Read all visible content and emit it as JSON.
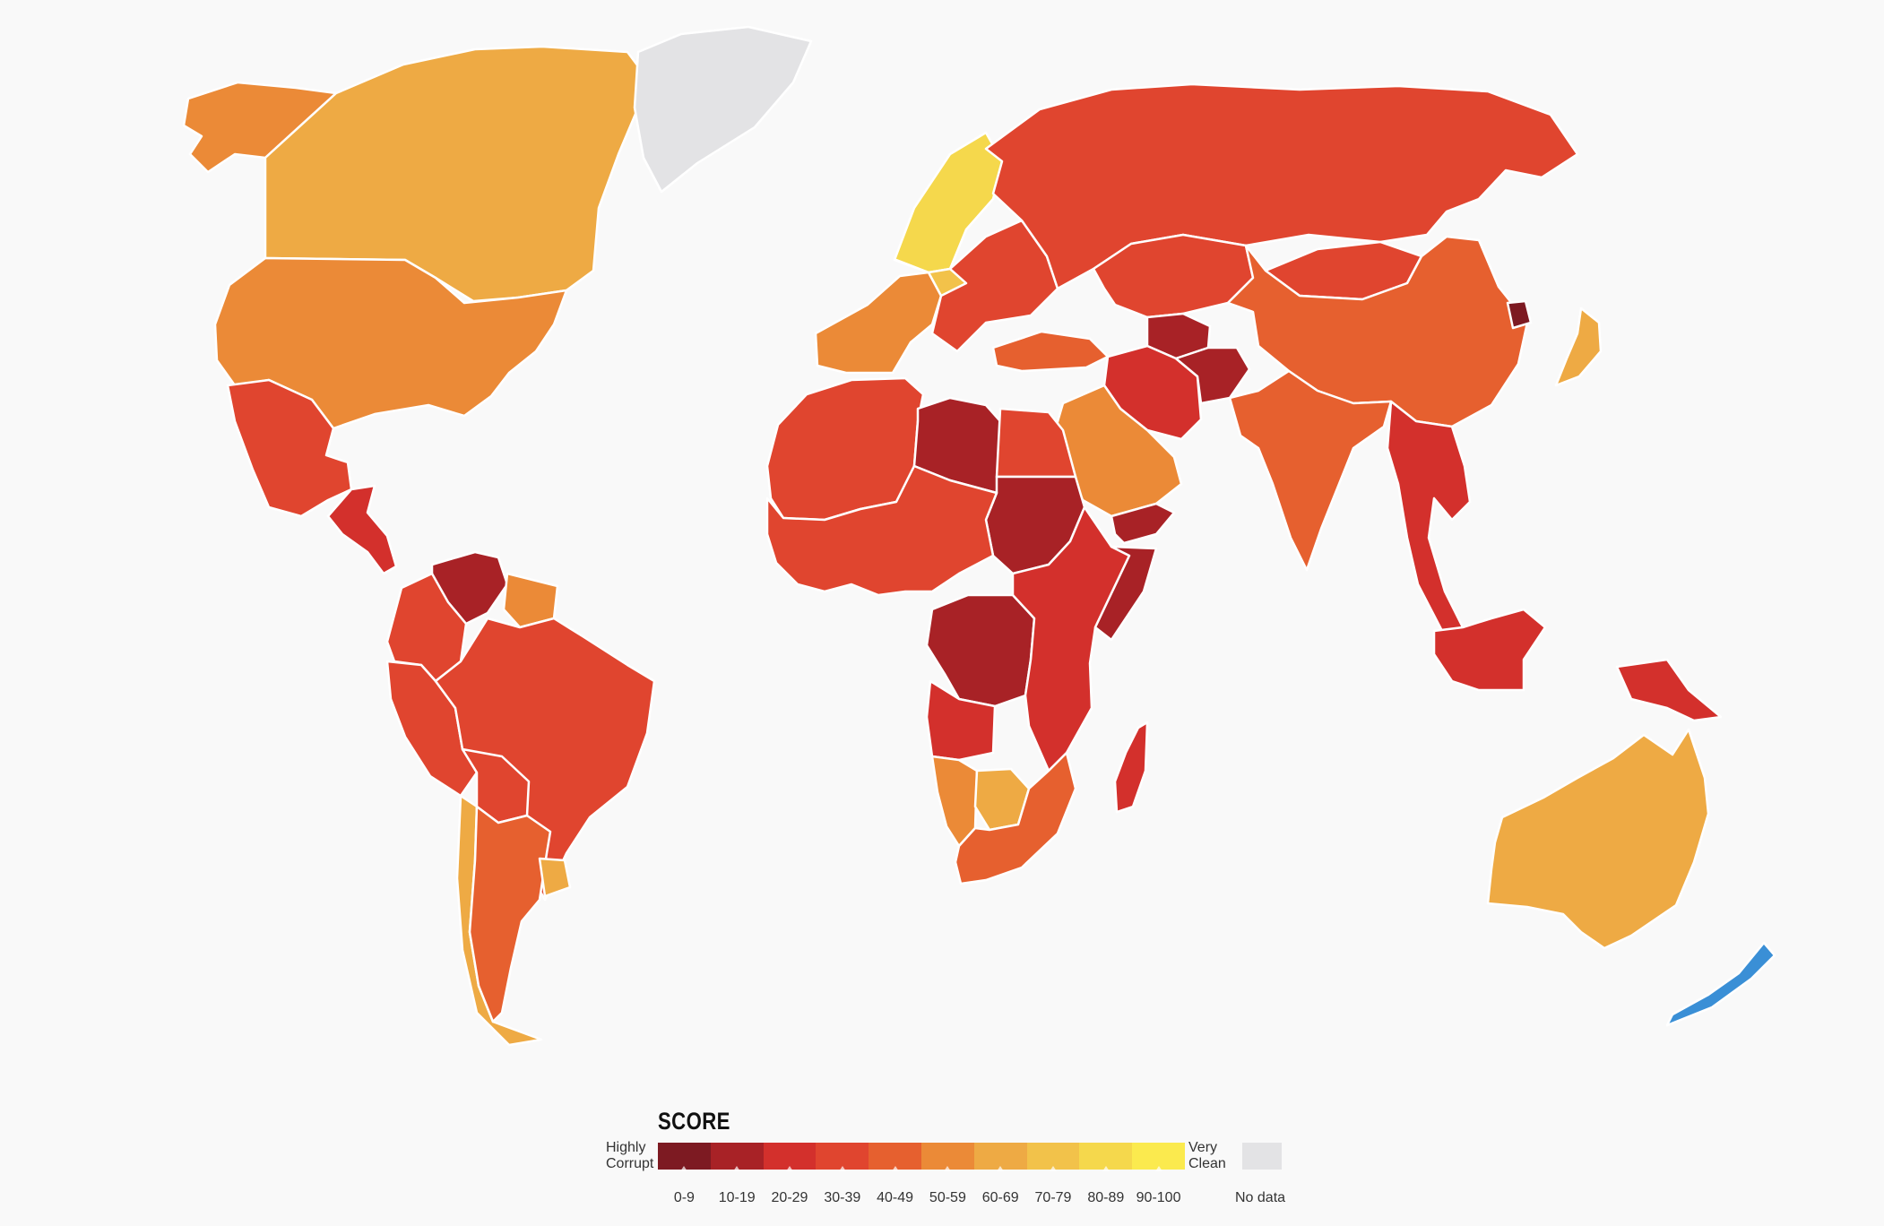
{
  "legend": {
    "title": "SCORE",
    "left_label_line1": "Highly",
    "left_label_line2": "Corrupt",
    "right_label_line1": "Very",
    "right_label_line2": "Clean",
    "no_data_label": "No data",
    "bins": [
      {
        "label": "0-9",
        "color": "#7d1a22"
      },
      {
        "label": "10-19",
        "color": "#a82226"
      },
      {
        "label": "20-29",
        "color": "#d3302c"
      },
      {
        "label": "30-39",
        "color": "#e0452f"
      },
      {
        "label": "40-49",
        "color": "#e6602f"
      },
      {
        "label": "50-59",
        "color": "#eb8a37"
      },
      {
        "label": "60-69",
        "color": "#eeaa44"
      },
      {
        "label": "70-79",
        "color": "#f2c24a"
      },
      {
        "label": "80-89",
        "color": "#f5d84c"
      },
      {
        "label": "90-100",
        "color": "#fbea4e"
      }
    ],
    "no_data_color": "#e3e3e5"
  },
  "map": {
    "ocean_color": "#f9f9f9",
    "border_color": "#ffffff",
    "regions": [
      {
        "name": "alaska",
        "color": "#eb8a37"
      },
      {
        "name": "canada",
        "color": "#eeaa44"
      },
      {
        "name": "greenland",
        "color": "#e3e3e5"
      },
      {
        "name": "usa",
        "color": "#eb8a37"
      },
      {
        "name": "mexico",
        "color": "#e0452f"
      },
      {
        "name": "central-america",
        "color": "#d3302c"
      },
      {
        "name": "venezuela",
        "color": "#a82226"
      },
      {
        "name": "colombia",
        "color": "#e0452f"
      },
      {
        "name": "brazil",
        "color": "#e0452f"
      },
      {
        "name": "guianas",
        "color": "#eb8a37"
      },
      {
        "name": "peru",
        "color": "#e0452f"
      },
      {
        "name": "bolivia",
        "color": "#e0452f"
      },
      {
        "name": "argentina",
        "color": "#e6602f"
      },
      {
        "name": "chile",
        "color": "#eeaa44"
      },
      {
        "name": "uruguay",
        "color": "#eeaa44"
      },
      {
        "name": "scandinavia",
        "color": "#f5d84c"
      },
      {
        "name": "western-europe",
        "color": "#eb8a37"
      },
      {
        "name": "central-europe",
        "color": "#f2c24a"
      },
      {
        "name": "eastern-europe",
        "color": "#e0452f"
      },
      {
        "name": "russia",
        "color": "#e0452f"
      },
      {
        "name": "kazakhstan",
        "color": "#e0452f"
      },
      {
        "name": "turkey",
        "color": "#e6602f"
      },
      {
        "name": "china",
        "color": "#e6602f"
      },
      {
        "name": "mongolia",
        "color": "#e0452f"
      },
      {
        "name": "iran",
        "color": "#d3302c"
      },
      {
        "name": "afghanistan",
        "color": "#a82226"
      },
      {
        "name": "turkmenistan",
        "color": "#a82226"
      },
      {
        "name": "saudi-arabia",
        "color": "#eb8a37"
      },
      {
        "name": "yemen",
        "color": "#a82226"
      },
      {
        "name": "india",
        "color": "#e6602f"
      },
      {
        "name": "southeast-asia",
        "color": "#d3302c"
      },
      {
        "name": "japan",
        "color": "#eeaa44"
      },
      {
        "name": "north-korea",
        "color": "#7d1a22"
      },
      {
        "name": "indonesia",
        "color": "#d3302c"
      },
      {
        "name": "north-africa",
        "color": "#e0452f"
      },
      {
        "name": "libya",
        "color": "#a82226"
      },
      {
        "name": "egypt",
        "color": "#e0452f"
      },
      {
        "name": "sudan",
        "color": "#a82226"
      },
      {
        "name": "west-africa",
        "color": "#e0452f"
      },
      {
        "name": "dr-congo",
        "color": "#a82226"
      },
      {
        "name": "angola",
        "color": "#d3302c"
      },
      {
        "name": "east-africa",
        "color": "#d3302c"
      },
      {
        "name": "somalia",
        "color": "#a82226"
      },
      {
        "name": "southern-africa",
        "color": "#e6602f"
      },
      {
        "name": "namibia",
        "color": "#eb8a37"
      },
      {
        "name": "botswana",
        "color": "#eeaa44"
      },
      {
        "name": "madagascar",
        "color": "#d3302c"
      },
      {
        "name": "australia",
        "color": "#eeaa44"
      },
      {
        "name": "new-zealand",
        "color": "#3a8fd6"
      },
      {
        "name": "papua-new-guinea",
        "color": "#d3302c"
      }
    ]
  }
}
